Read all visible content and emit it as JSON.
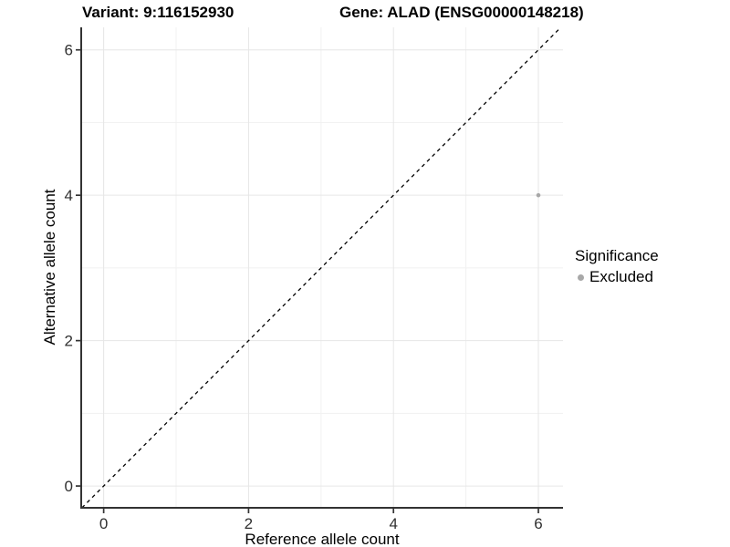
{
  "chart_data": {
    "type": "scatter",
    "title_left": "Variant: 9:116152930",
    "title_right": "Gene: ALAD (ENSG00000148218)",
    "xlabel": "Reference allele count",
    "ylabel": "Alternative allele count",
    "xticks": [
      0,
      2,
      4,
      6
    ],
    "yticks": [
      0,
      2,
      4,
      6
    ],
    "x_minor": [
      1,
      3,
      5
    ],
    "y_minor": [
      1,
      3,
      5
    ],
    "xlim": [
      -0.31,
      6.34
    ],
    "ylim": [
      -0.3,
      6.31
    ],
    "points": [
      {
        "x": 6,
        "y": 4,
        "series": "Excluded"
      }
    ],
    "abline": {
      "slope": 1,
      "intercept": 0,
      "style": "dashed"
    },
    "legend": {
      "title": "Significance",
      "position": "right",
      "items": [
        {
          "label": "Excluded",
          "color": "#a8a8a8"
        }
      ]
    },
    "grid": "on",
    "colors": {
      "point": "#a8a8a8",
      "grid_major": "#e6e6e6",
      "grid_minor": "#f1f1f1",
      "axis": "#333333",
      "abline": "#000000"
    }
  }
}
